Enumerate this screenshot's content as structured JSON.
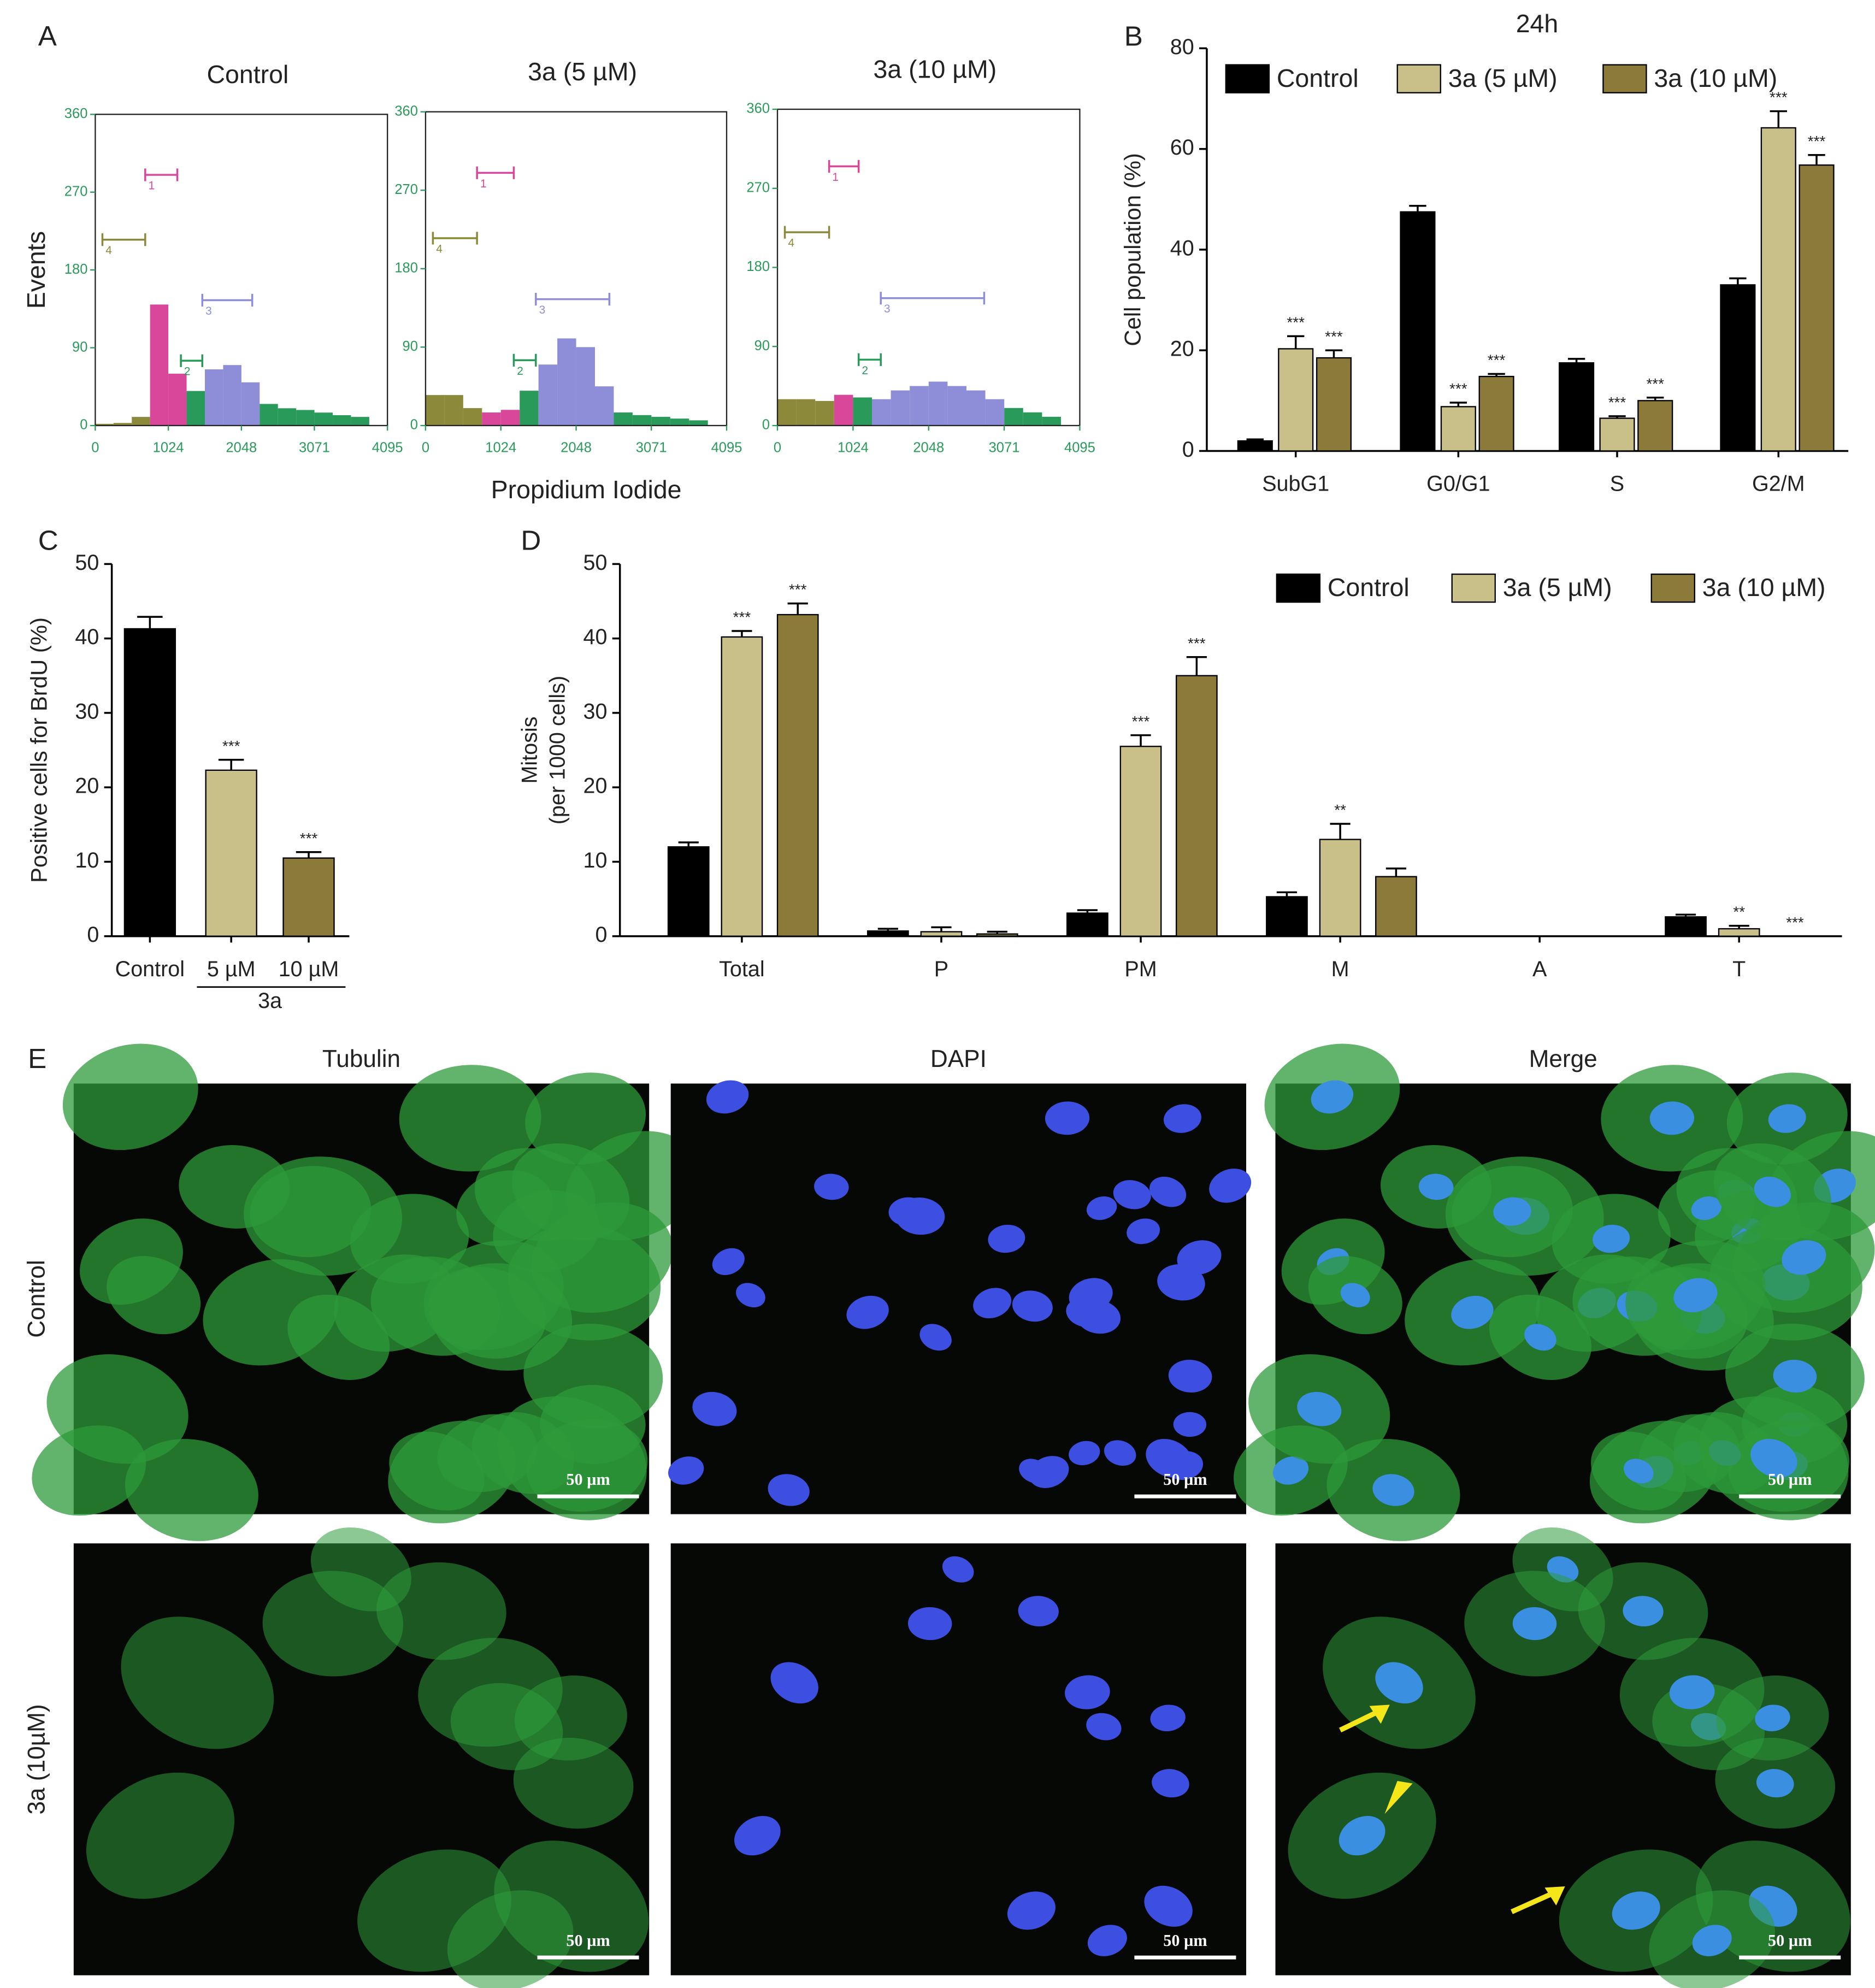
{
  "chart_data": [
    {
      "type": "histogram",
      "panel": "A",
      "title": "Control",
      "ylabel": "Events",
      "bins": [
        0,
        256,
        512,
        768,
        1024,
        1280,
        1536,
        1792,
        2048,
        2304,
        2560,
        2816,
        3072,
        3328,
        3584,
        3840,
        4095
      ],
      "values": [
        2,
        3,
        10,
        140,
        60,
        40,
        65,
        70,
        50,
        25,
        20,
        18,
        15,
        12,
        10,
        0
      ],
      "colors": [
        "#8c8a3a",
        "#8c8a3a",
        "#8c8a3a",
        "#d9479a",
        "#d9479a",
        "#2a9a5a",
        "#8e8ed8",
        "#8e8ed8",
        "#8e8ed8",
        "#2a9a5a",
        "#2a9a5a",
        "#2a9a5a",
        "#2a9a5a",
        "#2a9a5a",
        "#2a9a5a",
        "#2a9a5a"
      ],
      "xlim": [
        0,
        4095
      ],
      "xticks": [
        0,
        1024,
        2048,
        3071,
        4095
      ],
      "ylim": [
        0,
        360
      ],
      "yticks": [
        0,
        90,
        180,
        270,
        360
      ],
      "gates": [
        {
          "label": "1",
          "x": [
            700,
            1150
          ],
          "y": 290,
          "color": "#d9479a"
        },
        {
          "label": "4",
          "x": [
            100,
            700
          ],
          "y": 215,
          "color": "#8c8a3a"
        },
        {
          "label": "3",
          "x": [
            1500,
            2200
          ],
          "y": 145,
          "color": "#8e8ed8"
        },
        {
          "label": "2",
          "x": [
            1200,
            1500
          ],
          "y": 75,
          "color": "#2a9a5a"
        }
      ]
    },
    {
      "type": "histogram",
      "title": "3a (5 µM)",
      "xlabel": "Propidium Iodide",
      "bins": [
        0,
        256,
        512,
        768,
        1024,
        1280,
        1536,
        1792,
        2048,
        2304,
        2560,
        2816,
        3072,
        3328,
        3584,
        3840,
        4095
      ],
      "values": [
        35,
        35,
        20,
        15,
        18,
        40,
        70,
        100,
        90,
        45,
        15,
        12,
        10,
        8,
        6,
        0
      ],
      "colors": [
        "#8c8a3a",
        "#8c8a3a",
        "#8c8a3a",
        "#d9479a",
        "#d9479a",
        "#2a9a5a",
        "#8e8ed8",
        "#8e8ed8",
        "#8e8ed8",
        "#8e8ed8",
        "#2a9a5a",
        "#2a9a5a",
        "#2a9a5a",
        "#2a9a5a",
        "#2a9a5a",
        "#2a9a5a"
      ],
      "xlim": [
        0,
        4095
      ],
      "xticks": [
        0,
        1024,
        2048,
        3071,
        4095
      ],
      "ylim": [
        0,
        360
      ],
      "yticks": [
        0,
        90,
        180,
        270,
        360
      ],
      "gates": [
        {
          "label": "1",
          "x": [
            700,
            1200
          ],
          "y": 290,
          "color": "#d9479a"
        },
        {
          "label": "4",
          "x": [
            100,
            700
          ],
          "y": 215,
          "color": "#8c8a3a"
        },
        {
          "label": "3",
          "x": [
            1500,
            2500
          ],
          "y": 145,
          "color": "#8e8ed8"
        },
        {
          "label": "2",
          "x": [
            1200,
            1500
          ],
          "y": 75,
          "color": "#2a9a5a"
        }
      ]
    },
    {
      "type": "histogram",
      "title": "3a (10 µM)",
      "bins": [
        0,
        256,
        512,
        768,
        1024,
        1280,
        1536,
        1792,
        2048,
        2304,
        2560,
        2816,
        3072,
        3328,
        3584,
        3840,
        4095
      ],
      "values": [
        30,
        30,
        28,
        35,
        32,
        30,
        40,
        45,
        50,
        45,
        40,
        30,
        20,
        15,
        10,
        0
      ],
      "colors": [
        "#8c8a3a",
        "#8c8a3a",
        "#8c8a3a",
        "#d9479a",
        "#2a9a5a",
        "#8e8ed8",
        "#8e8ed8",
        "#8e8ed8",
        "#8e8ed8",
        "#8e8ed8",
        "#8e8ed8",
        "#8e8ed8",
        "#2a9a5a",
        "#2a9a5a",
        "#2a9a5a",
        "#2a9a5a"
      ],
      "xlim": [
        0,
        4095
      ],
      "xticks": [
        0,
        1024,
        2048,
        3071,
        4095
      ],
      "ylim": [
        0,
        360
      ],
      "yticks": [
        0,
        90,
        180,
        270,
        360
      ],
      "gates": [
        {
          "label": "1",
          "x": [
            700,
            1100
          ],
          "y": 295,
          "color": "#d9479a"
        },
        {
          "label": "4",
          "x": [
            100,
            700
          ],
          "y": 220,
          "color": "#8c8a3a"
        },
        {
          "label": "3",
          "x": [
            1400,
            2800
          ],
          "y": 145,
          "color": "#8e8ed8"
        },
        {
          "label": "2",
          "x": [
            1100,
            1400
          ],
          "y": 75,
          "color": "#2a9a5a"
        }
      ]
    },
    {
      "type": "bar",
      "panel": "B",
      "title": "24h",
      "ylabel": "Cell population (%)",
      "categories": [
        "SubG1",
        "G0/G1",
        "S",
        "G2/M"
      ],
      "series": [
        {
          "name": "Control",
          "color": "#000000",
          "values": [
            2,
            47.5,
            17.5,
            33
          ],
          "errors": [
            0.3,
            1.2,
            0.8,
            1.3
          ]
        },
        {
          "name": "3a (5 µM)",
          "color": "#c9bf88",
          "values": [
            20.3,
            8.8,
            6.5,
            64.2
          ],
          "errors": [
            2.5,
            0.8,
            0.4,
            3.3
          ],
          "significance": [
            "***",
            "***",
            "***",
            "***"
          ]
        },
        {
          "name": "3a (10 µM)",
          "color": "#8b7a3a",
          "values": [
            18.5,
            14.8,
            10,
            56.8
          ],
          "errors": [
            1.5,
            0.5,
            0.6,
            2
          ],
          "significance": [
            "***",
            "***",
            "***",
            "***"
          ]
        }
      ],
      "ylim": [
        0,
        80
      ],
      "yticks": [
        0,
        20,
        40,
        60,
        80
      ]
    },
    {
      "type": "bar",
      "panel": "C",
      "ylabel": "Positive cells for BrdU (%)",
      "categories": [
        "Control",
        "5 µM",
        "10 µM"
      ],
      "group_label": "3a",
      "values": [
        41.3,
        22.3,
        10.5
      ],
      "errors": [
        1.6,
        1.4,
        0.8
      ],
      "colors": [
        "#000000",
        "#c9bf88",
        "#8b7a3a"
      ],
      "significance": [
        null,
        "***",
        "***"
      ],
      "ylim": [
        0,
        50
      ],
      "yticks": [
        0,
        10,
        20,
        30,
        40,
        50
      ]
    },
    {
      "type": "bar",
      "panel": "D",
      "ylabel": [
        "Mitosis",
        "(per 1000 cells)"
      ],
      "categories": [
        "Total",
        "P",
        "PM",
        "M",
        "A",
        "T"
      ],
      "series": [
        {
          "name": "Control",
          "color": "#000000",
          "values": [
            12,
            0.7,
            3.1,
            5.3,
            0,
            2.6
          ],
          "errors": [
            0.6,
            0.3,
            0.4,
            0.6,
            0,
            0.3
          ]
        },
        {
          "name": "3a (5 µM)",
          "color": "#c9bf88",
          "values": [
            40.2,
            0.6,
            25.5,
            13,
            0,
            1
          ],
          "errors": [
            0.8,
            0.6,
            1.5,
            2.1,
            0,
            0.4
          ],
          "significance": [
            "***",
            null,
            "***",
            "**",
            null,
            "**"
          ]
        },
        {
          "name": "3a (10 µM)",
          "color": "#8b7a3a",
          "values": [
            43.2,
            0.3,
            35,
            8,
            0,
            0
          ],
          "errors": [
            1.5,
            0.3,
            2.5,
            1.1,
            0,
            0
          ],
          "significance": [
            "***",
            null,
            "***",
            null,
            null,
            "***"
          ]
        }
      ],
      "ylim": [
        0,
        50
      ],
      "yticks": [
        0,
        10,
        20,
        30,
        40,
        50
      ]
    }
  ],
  "panel_e": {
    "label": "E",
    "columns": [
      "Tubulin",
      "DAPI",
      "Merge"
    ],
    "rows": [
      "Control",
      "3a (10µM)"
    ],
    "scale_bar": "50 µm"
  }
}
